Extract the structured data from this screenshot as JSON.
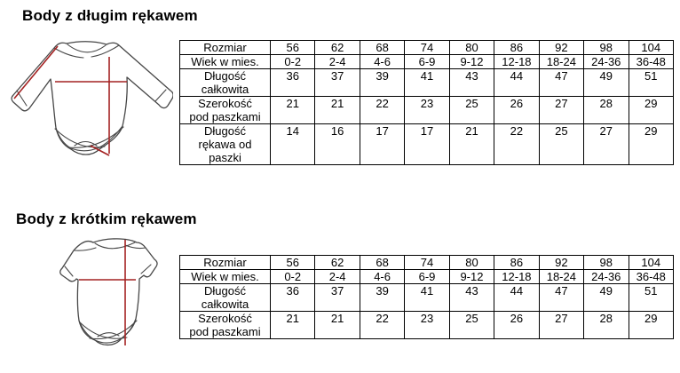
{
  "colors": {
    "background": "#ffffff",
    "measure_line": "#a42222",
    "outline": "#474747",
    "table_border": "#000000",
    "text": "#000000"
  },
  "sections": [
    {
      "title": "Body z długim rękawem",
      "diagram": "long-sleeve-bodysuit-line-drawing-with-red-measurement-lines",
      "table": {
        "rows": [
          {
            "label": "Rozmiar",
            "values": [
              "56",
              "62",
              "68",
              "74",
              "80",
              "86",
              "92",
              "98",
              "104"
            ]
          },
          {
            "label": "Wiek w mies.",
            "values": [
              "0-2",
              "2-4",
              "4-6",
              "6-9",
              "9-12",
              "12-18",
              "18-24",
              "24-36",
              "36-48"
            ]
          },
          {
            "label": "Długość\ncałkowita",
            "values": [
              "36",
              "37",
              "39",
              "41",
              "43",
              "44",
              "47",
              "49",
              "51"
            ]
          },
          {
            "label": "Szerokość\npod paszkami",
            "values": [
              "21",
              "21",
              "22",
              "23",
              "25",
              "26",
              "27",
              "28",
              "29"
            ]
          },
          {
            "label": "Długość\nrękawa od\npaszki",
            "values": [
              "14",
              "16",
              "17",
              "17",
              "21",
              "22",
              "25",
              "27",
              "29"
            ]
          }
        ]
      }
    },
    {
      "title": "Body z krótkim rękawem",
      "diagram": "short-sleeve-bodysuit-line-drawing-with-red-measurement-lines",
      "table": {
        "rows": [
          {
            "label": "Rozmiar",
            "values": [
              "56",
              "62",
              "68",
              "74",
              "80",
              "86",
              "92",
              "98",
              "104"
            ]
          },
          {
            "label": "Wiek w mies.",
            "values": [
              "0-2",
              "2-4",
              "4-6",
              "6-9",
              "9-12",
              "12-18",
              "18-24",
              "24-36",
              "36-48"
            ]
          },
          {
            "label": "Długość\ncałkowita",
            "values": [
              "36",
              "37",
              "39",
              "41",
              "43",
              "44",
              "47",
              "49",
              "51"
            ]
          },
          {
            "label": "Szerokość\npod paszkami",
            "values": [
              "21",
              "21",
              "22",
              "23",
              "25",
              "26",
              "27",
              "28",
              "29"
            ]
          }
        ]
      }
    }
  ]
}
